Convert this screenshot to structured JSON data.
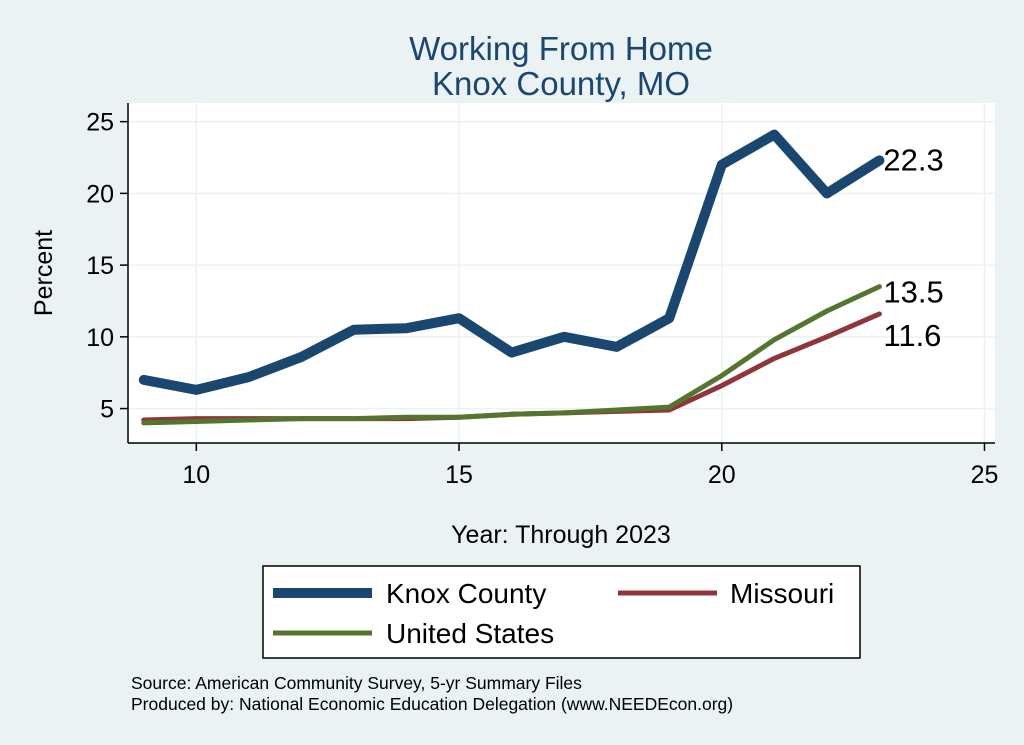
{
  "chart_data": {
    "type": "line",
    "title": [
      "Working From Home",
      "Knox County, MO"
    ],
    "xlabel": "Year: Through 2023",
    "ylabel": "Percent",
    "xlim": [
      8.7,
      25.2
    ],
    "ylim": [
      2.6,
      26.3
    ],
    "xticks": [
      10,
      15,
      20,
      25
    ],
    "yticks": [
      5,
      10,
      15,
      20,
      25
    ],
    "grid": true,
    "legend_position": "bottom",
    "series": [
      {
        "name": "Knox County",
        "color": "#1a476f",
        "x": [
          9,
          10,
          11,
          12,
          13,
          14,
          15,
          16,
          17,
          18,
          19,
          20,
          21,
          22,
          23
        ],
        "values": [
          7.0,
          6.3,
          7.2,
          8.6,
          10.5,
          10.6,
          11.3,
          8.9,
          10.0,
          9.3,
          11.3,
          22.0,
          24.1,
          20.0,
          22.3
        ],
        "end_label": "22.3"
      },
      {
        "name": "Missouri",
        "color": "#90353b",
        "x": [
          9,
          10,
          11,
          12,
          13,
          14,
          15,
          16,
          17,
          18,
          19,
          20,
          21,
          22,
          23
        ],
        "values": [
          4.2,
          4.3,
          4.3,
          4.3,
          4.3,
          4.3,
          4.4,
          4.6,
          4.7,
          4.8,
          4.9,
          6.6,
          8.5,
          10.0,
          11.6
        ],
        "end_label": "11.6"
      },
      {
        "name": "United States",
        "color": "#55752f",
        "x": [
          9,
          10,
          11,
          12,
          13,
          14,
          15,
          16,
          17,
          18,
          19,
          20,
          21,
          22,
          23
        ],
        "values": [
          4.0,
          4.1,
          4.2,
          4.3,
          4.3,
          4.4,
          4.4,
          4.6,
          4.7,
          4.9,
          5.1,
          7.3,
          9.8,
          11.8,
          13.5
        ],
        "end_label": "13.5"
      }
    ],
    "legend": [
      "Knox County",
      "Missouri",
      "United States"
    ]
  },
  "source_lines": [
    "Source: American Community Survey, 5-yr Summary Files",
    "Produced by: National Economic Education Delegation (www.NEEDEcon.org)"
  ],
  "colors": {
    "background": "#eaf2f3",
    "plot_background": "#ffffff",
    "title": "#1a476f",
    "grid": "#eaf2f3"
  }
}
